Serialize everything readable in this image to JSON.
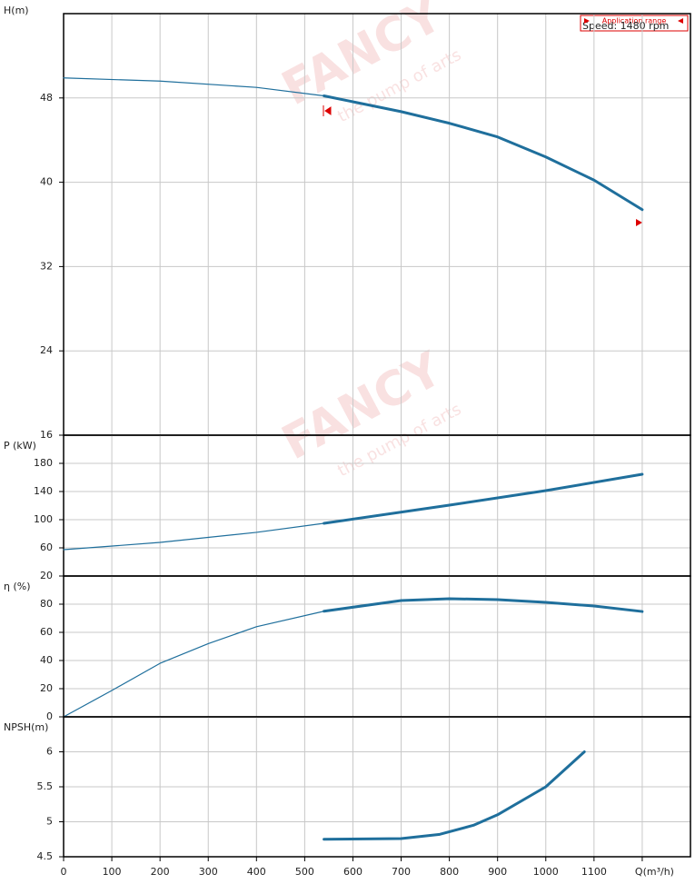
{
  "watermark": {
    "brand": "FANCY",
    "tagline": "the pump of arts"
  },
  "chart_data": [
    {
      "type": "line",
      "ylabel": "H(m)",
      "xlim": [
        0,
        1300
      ],
      "ylim": [
        16,
        56
      ],
      "yticks": [
        16,
        24,
        32,
        40,
        48
      ],
      "annotations": [
        "Application range",
        "Speed: 1480 rpm"
      ],
      "series": [
        {
          "color": "#1f6f9c",
          "width": 1.2,
          "x": [
            0,
            200,
            400,
            540
          ],
          "values": [
            49.9,
            49.6,
            49.0,
            48.2
          ]
        },
        {
          "color": "#1f6f9c",
          "width": 3,
          "x": [
            540,
            700,
            800,
            900,
            1000,
            1100,
            1200
          ],
          "values": [
            48.2,
            46.7,
            45.6,
            44.3,
            42.4,
            40.2,
            37.4
          ]
        }
      ]
    },
    {
      "type": "line",
      "ylabel": "P (kW)",
      "xlim": [
        0,
        1300
      ],
      "ylim": [
        20,
        220
      ],
      "yticks": [
        20,
        60,
        100,
        140,
        180
      ],
      "series": [
        {
          "color": "#1f6f9c",
          "width": 1.2,
          "x": [
            0,
            200,
            400,
            540
          ],
          "values": [
            57.4,
            67.7,
            82,
            94.8
          ]
        },
        {
          "color": "#1f6f9c",
          "width": 3,
          "x": [
            540,
            800,
            1000,
            1200
          ],
          "values": [
            94.8,
            120.6,
            141.3,
            164.5
          ]
        }
      ]
    },
    {
      "type": "line",
      "ylabel": "η (%)",
      "xlim": [
        0,
        1300
      ],
      "ylim": [
        0,
        100
      ],
      "yticks": [
        0,
        20,
        40,
        60,
        80
      ],
      "series": [
        {
          "color": "#1f6f9c",
          "width": 1.2,
          "x": [
            0,
            100,
            200,
            300,
            400,
            540
          ],
          "values": [
            0,
            18.7,
            38,
            52,
            64,
            75
          ]
        },
        {
          "color": "#1f6f9c",
          "width": 3,
          "x": [
            540,
            700,
            800,
            900,
            1000,
            1100,
            1200
          ],
          "values": [
            75,
            82.6,
            83.9,
            83.2,
            81.3,
            78.7,
            74.8
          ]
        }
      ]
    },
    {
      "type": "line",
      "ylabel": "NPSH(m)",
      "xlim": [
        0,
        1300
      ],
      "ylim": [
        4.5,
        6.5
      ],
      "yticks": [
        4.5,
        5,
        5.5,
        6
      ],
      "xticks": [
        0,
        100,
        200,
        300,
        400,
        500,
        600,
        700,
        800,
        900,
        1000,
        1100,
        {
          "value": 1200,
          "label": "Q(m³/h)"
        }
      ],
      "series": [
        {
          "color": "#1f6f9c",
          "width": 3,
          "x": [
            540,
            700,
            780,
            850,
            900,
            1000,
            1080
          ],
          "values": [
            4.75,
            4.76,
            4.82,
            4.95,
            5.1,
            5.5,
            6.0
          ]
        }
      ]
    }
  ]
}
